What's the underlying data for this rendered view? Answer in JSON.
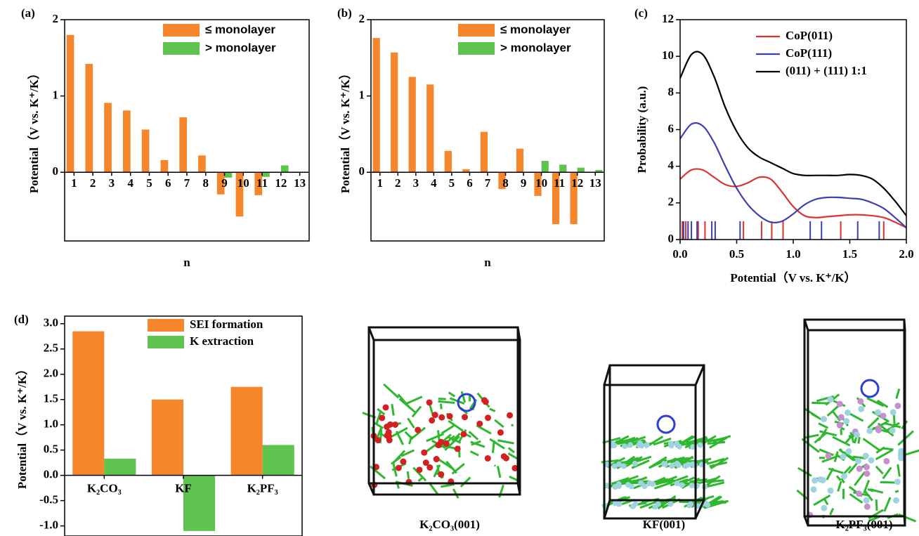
{
  "chart_data": [
    {
      "type": "bar",
      "label": "(a)",
      "y_label": "Potential（V vs. K⁺/K）",
      "x_label": "n",
      "categories": [
        "1",
        "2",
        "3",
        "4",
        "5",
        "6",
        "7",
        "8",
        "9",
        "10",
        "11",
        "12",
        "13"
      ],
      "series": [
        {
          "name": "≤ monolayer",
          "color": "#f5862b",
          "values": [
            1.8,
            1.42,
            0.91,
            0.81,
            0.56,
            0.16,
            0.72,
            0.22,
            -0.29,
            -0.58,
            -0.3,
            null,
            null
          ]
        },
        {
          "name": "> monolayer",
          "color": "#5fc34f",
          "values": [
            null,
            null,
            null,
            null,
            null,
            null,
            null,
            null,
            -0.07,
            null,
            -0.06,
            0.09,
            null
          ]
        }
      ],
      "ylim": [
        -0.9,
        2
      ],
      "yticks": [
        0,
        1,
        2
      ],
      "legend": "upper right"
    },
    {
      "type": "bar",
      "label": "(b)",
      "y_label": "Potential（V vs. K⁺/K）",
      "x_label": "n",
      "categories": [
        "1",
        "2",
        "3",
        "4",
        "5",
        "6",
        "7",
        "8",
        "9",
        "10",
        "11",
        "12",
        "13"
      ],
      "series": [
        {
          "name": "≤ monolayer",
          "color": "#f5862b",
          "values": [
            1.76,
            1.57,
            1.25,
            1.15,
            0.28,
            0.04,
            0.53,
            -0.22,
            0.31,
            -0.31,
            -0.68,
            -0.68,
            null
          ]
        },
        {
          "name": "> monolayer",
          "color": "#5fc34f",
          "values": [
            null,
            null,
            null,
            null,
            null,
            null,
            null,
            null,
            null,
            0.15,
            0.1,
            0.06,
            0.03
          ]
        }
      ],
      "ylim": [
        -0.9,
        2
      ],
      "yticks": [
        0,
        1,
        2
      ],
      "legend": "upper right"
    },
    {
      "type": "line",
      "label": "(c)",
      "y_label": "Probability (a.u.)",
      "x_label": "Potential（V vs. K⁺/K）",
      "x": [
        0,
        0.1,
        0.2,
        0.3,
        0.4,
        0.5,
        0.6,
        0.7,
        0.8,
        0.9,
        1.0,
        1.1,
        1.2,
        1.3,
        1.4,
        1.5,
        1.6,
        1.7,
        1.8,
        1.9,
        2.0
      ],
      "series": [
        {
          "name": "CoP(011)",
          "color": "#e03030",
          "values": [
            3.3,
            3.8,
            3.8,
            3.4,
            3.0,
            2.9,
            3.1,
            3.4,
            3.3,
            2.6,
            1.8,
            1.3,
            1.2,
            1.25,
            1.3,
            1.35,
            1.35,
            1.3,
            1.2,
            0.95,
            0.65
          ],
          "rug_x": [
            0.02,
            0.05,
            0.16,
            0.22,
            0.56,
            0.72,
            0.81,
            0.91,
            1.42,
            1.8
          ]
        },
        {
          "name": "CoP(111)",
          "color": "#3b3fb0",
          "values": [
            5.5,
            6.3,
            6.2,
            5.3,
            4.0,
            2.8,
            1.9,
            1.3,
            0.95,
            1.0,
            1.4,
            1.9,
            2.2,
            2.3,
            2.3,
            2.25,
            2.2,
            2.0,
            1.7,
            1.2,
            0.65
          ],
          "rug_x": [
            0.03,
            0.07,
            0.1,
            0.15,
            0.28,
            0.31,
            0.53,
            1.15,
            1.25,
            1.57,
            1.76
          ]
        },
        {
          "name": "(011) + (111) 1:1",
          "color": "#000000",
          "values": [
            8.8,
            10.1,
            10.1,
            8.9,
            7.2,
            5.9,
            5.0,
            4.5,
            4.2,
            3.9,
            3.6,
            3.5,
            3.5,
            3.5,
            3.5,
            3.55,
            3.5,
            3.3,
            2.8,
            2.1,
            1.3
          ]
        }
      ],
      "xlim": [
        0,
        2
      ],
      "xticks": [
        {
          "value": 0,
          "label": "0.0"
        },
        0.5,
        {
          "value": 1,
          "label": "1.0"
        },
        1.5,
        {
          "value": 2,
          "label": "2.0"
        }
      ],
      "ylim": [
        0,
        12
      ],
      "yticks": [
        0,
        2,
        4,
        6,
        8,
        10,
        12
      ],
      "legend": "upper right"
    },
    {
      "type": "bar",
      "label": "(d)",
      "y_label": "Potential（V vs. K⁺/K）",
      "categories": [
        "K₂CO₃",
        "KF",
        "K₂PF₃"
      ],
      "series": [
        {
          "name": "SEI formation",
          "color": "#f5862b",
          "values": [
            2.85,
            1.5,
            1.75
          ]
        },
        {
          "name": "K extraction",
          "color": "#5fc34f",
          "values": [
            0.33,
            -1.1,
            0.6
          ]
        }
      ],
      "ylim": [
        -1.2,
        3.15
      ],
      "yticks": [
        {
          "value": 3,
          "label": "3.0"
        },
        2.5,
        {
          "value": 2,
          "label": "2.0"
        },
        1.5,
        {
          "value": 1,
          "label": "1.0"
        },
        0.5,
        {
          "value": 0,
          "label": "0.0"
        },
        -0.5,
        {
          "value": -1,
          "label": "-1.0"
        }
      ],
      "legend": "upper right"
    }
  ],
  "structures": [
    "K₂CO₃(001)",
    "KF(001)",
    "K₂PF₃(001)"
  ]
}
